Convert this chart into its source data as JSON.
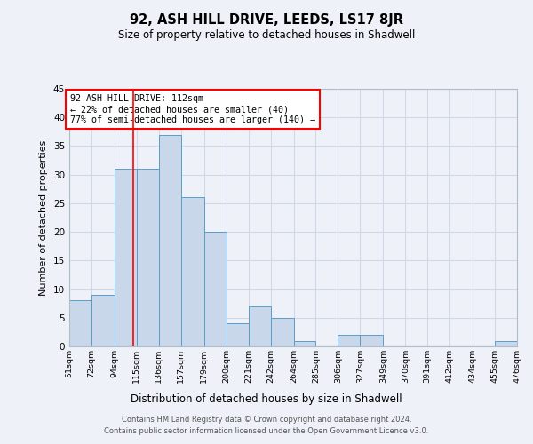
{
  "title": "92, ASH HILL DRIVE, LEEDS, LS17 8JR",
  "subtitle": "Size of property relative to detached houses in Shadwell",
  "xlabel": "Distribution of detached houses by size in Shadwell",
  "ylabel": "Number of detached properties",
  "bin_edges": [
    51,
    72,
    94,
    115,
    136,
    157,
    179,
    200,
    221,
    242,
    264,
    285,
    306,
    327,
    349,
    370,
    391,
    412,
    434,
    455,
    476
  ],
  "bin_labels": [
    "51sqm",
    "72sqm",
    "94sqm",
    "115sqm",
    "136sqm",
    "157sqm",
    "179sqm",
    "200sqm",
    "221sqm",
    "242sqm",
    "264sqm",
    "285sqm",
    "306sqm",
    "327sqm",
    "349sqm",
    "370sqm",
    "391sqm",
    "412sqm",
    "434sqm",
    "455sqm",
    "476sqm"
  ],
  "counts": [
    8,
    9,
    31,
    31,
    37,
    26,
    20,
    4,
    7,
    5,
    1,
    0,
    2,
    2,
    0,
    0,
    0,
    0,
    0,
    1
  ],
  "bar_facecolor": "#c8d8ea",
  "bar_edgecolor": "#5a9ec8",
  "vline_x": 112,
  "vline_color": "red",
  "annotation_text": "92 ASH HILL DRIVE: 112sqm\n← 22% of detached houses are smaller (40)\n77% of semi-detached houses are larger (140) →",
  "annotation_box_edgecolor": "red",
  "annotation_box_facecolor": "white",
  "ylim": [
    0,
    45
  ],
  "yticks": [
    0,
    5,
    10,
    15,
    20,
    25,
    30,
    35,
    40,
    45
  ],
  "grid_color": "#d0d8e8",
  "background_color": "#eef2f8",
  "footer_text": "Contains HM Land Registry data © Crown copyright and database right 2024.\nContains public sector information licensed under the Open Government Licence v3.0."
}
